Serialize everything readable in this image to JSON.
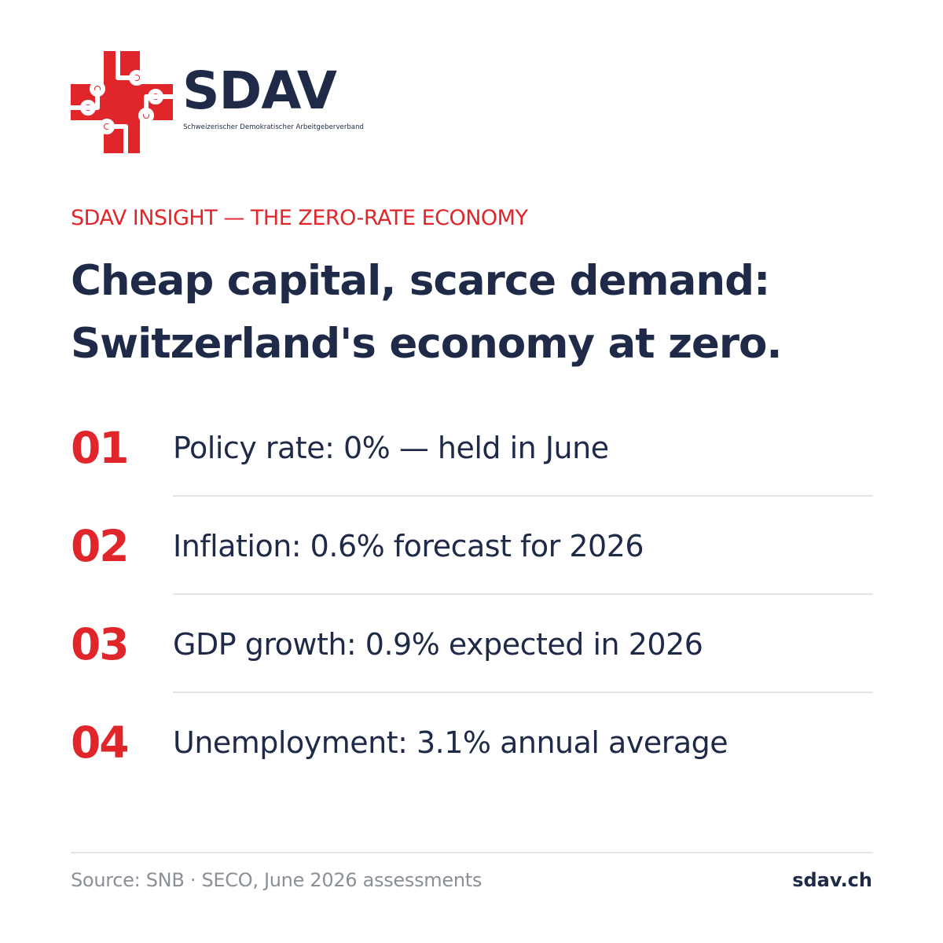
{
  "brand": {
    "name": "SDAV",
    "subtitle": "Schweizerischer Demokratischer Arbeitgeberverband",
    "accent_color": "#e0262b",
    "text_color": "#1e2a47",
    "logo_icon": "swiss-cross-circuit-icon"
  },
  "kicker": "SDAV INSIGHT — THE ZERO-RATE ECONOMY",
  "headline": {
    "line1": "Cheap capital, scarce demand:",
    "line2": "Switzerland's economy at zero."
  },
  "stats": [
    {
      "number": "01",
      "text": "Policy rate: 0% — held in June"
    },
    {
      "number": "02",
      "text": "Inflation: 0.6% forecast for 2026"
    },
    {
      "number": "03",
      "text": "GDP growth: 0.9% expected in 2026"
    },
    {
      "number": "04",
      "text": "Unemployment: 3.1% annual average"
    }
  ],
  "footer": {
    "source": "Source: SNB · SECO, June 2026 assessments",
    "site": "sdav.ch"
  }
}
